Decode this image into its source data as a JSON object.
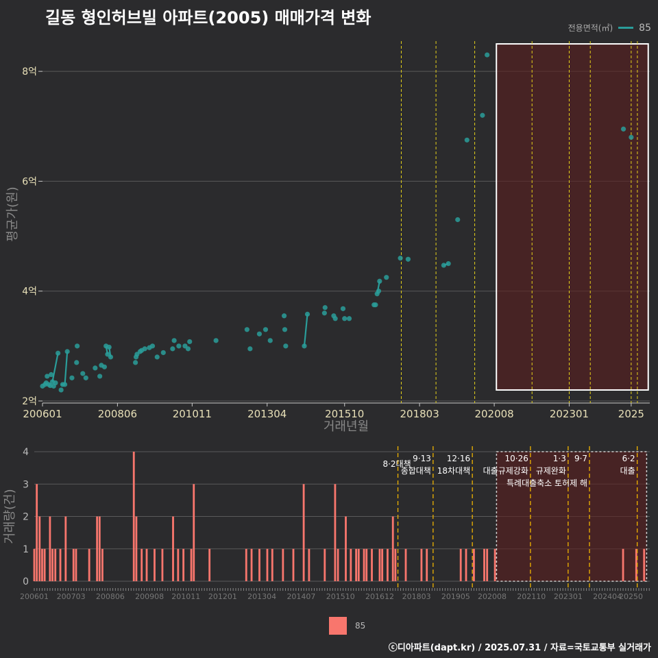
{
  "title": "길동 형인허브빌 아파트(2005) 매매가격 변화",
  "legend": {
    "title": "전용면적(㎡)",
    "series_label": "85",
    "bar_label": "85"
  },
  "footer": "ⓒ디아파트(dapt.kr) / 2025.07.31 / 자료=국토교통부 실거래가",
  "colors": {
    "line": "#2a9d9a",
    "bar": "#f8766d",
    "policy": "#e6d21a",
    "highlight": "#5a1e1e"
  },
  "chart_data": [
    {
      "type": "line",
      "title": "길동 형인허브빌 아파트(2005) 매매가격 변화",
      "xlabel": "거래년월",
      "ylabel": "평균가(원)",
      "xlim": [
        2006.0,
        2025.6
      ],
      "ylim": [
        2.0,
        8.8
      ],
      "xtick_values": [
        2006.0,
        2008.42,
        2010.83,
        2013.25,
        2015.75,
        2018.17,
        2020.58,
        2023.0,
        2025.0
      ],
      "xtick_labels": [
        "200601",
        "200806",
        "201011",
        "201304",
        "201510",
        "201803",
        "202008",
        "202301",
        "2025"
      ],
      "ytick_values": [
        2,
        4,
        6,
        8
      ],
      "ytick_labels": [
        "2억",
        "4억",
        "6억",
        "8억"
      ],
      "policy_lines": [
        2017.58,
        2018.7,
        2019.95,
        2021.8,
        2023.0,
        2023.68,
        2025.0,
        2025.2
      ],
      "highlight_range": {
        "x": [
          2020.65,
          2025.55
        ],
        "y": [
          2.2,
          8.5
        ]
      },
      "series": [
        {
          "name": "85",
          "points": [
            [
              2006.0,
              2.27
            ],
            [
              2006.08,
              2.3
            ],
            [
              2006.12,
              2.33
            ],
            [
              2006.15,
              2.45
            ],
            [
              2006.2,
              2.3
            ],
            [
              2006.25,
              2.28
            ],
            [
              2006.28,
              2.48
            ],
            [
              2006.32,
              2.35
            ],
            [
              2006.36,
              2.27
            ],
            [
              2006.42,
              2.33
            ],
            [
              2006.5,
              2.87
            ],
            [
              2006.6,
              2.2
            ],
            [
              2006.65,
              2.3
            ],
            [
              2006.72,
              2.3
            ],
            [
              2006.8,
              2.9
            ],
            [
              2006.95,
              2.42
            ],
            [
              2007.1,
              2.7
            ],
            [
              2007.12,
              3.0
            ],
            [
              2007.3,
              2.5
            ],
            [
              2007.4,
              2.42
            ],
            [
              2007.7,
              2.6
            ],
            [
              2007.85,
              2.45
            ],
            [
              2007.9,
              2.65
            ],
            [
              2008.0,
              2.62
            ],
            [
              2008.05,
              3.0
            ],
            [
              2008.1,
              2.85
            ],
            [
              2008.15,
              2.98
            ],
            [
              2008.2,
              2.8
            ],
            [
              2009.0,
              2.7
            ],
            [
              2009.02,
              2.8
            ],
            [
              2009.05,
              2.85
            ],
            [
              2009.15,
              2.9
            ],
            [
              2009.2,
              2.92
            ],
            [
              2009.3,
              2.95
            ],
            [
              2009.45,
              2.97
            ],
            [
              2009.55,
              3.0
            ],
            [
              2009.7,
              2.8
            ],
            [
              2009.9,
              2.88
            ],
            [
              2010.2,
              2.95
            ],
            [
              2010.25,
              3.1
            ],
            [
              2010.4,
              3.0
            ],
            [
              2010.6,
              3.0
            ],
            [
              2010.7,
              2.95
            ],
            [
              2010.75,
              3.08
            ],
            [
              2011.6,
              3.1
            ],
            [
              2012.6,
              3.3
            ],
            [
              2012.7,
              2.95
            ],
            [
              2013.0,
              3.22
            ],
            [
              2013.2,
              3.3
            ],
            [
              2013.35,
              3.1
            ],
            [
              2013.8,
              3.55
            ],
            [
              2013.82,
              3.3
            ],
            [
              2013.85,
              3.0
            ],
            [
              2014.45,
              3.0
            ],
            [
              2014.55,
              3.58
            ],
            [
              2015.1,
              3.6
            ],
            [
              2015.12,
              3.7
            ],
            [
              2015.4,
              3.55
            ],
            [
              2015.45,
              3.5
            ],
            [
              2015.7,
              3.68
            ],
            [
              2015.75,
              3.5
            ],
            [
              2015.9,
              3.5
            ],
            [
              2016.7,
              3.75
            ],
            [
              2016.75,
              3.75
            ],
            [
              2016.8,
              3.95
            ],
            [
              2016.85,
              4.0
            ],
            [
              2016.88,
              4.18
            ],
            [
              2017.1,
              4.25
            ],
            [
              2017.55,
              4.6
            ],
            [
              2017.8,
              4.58
            ],
            [
              2018.95,
              4.47
            ],
            [
              2019.1,
              4.5
            ],
            [
              2019.4,
              5.3
            ],
            [
              2019.7,
              6.75
            ],
            [
              2020.2,
              7.2
            ],
            [
              2020.35,
              8.3
            ],
            [
              2024.75,
              6.95
            ],
            [
              2025.0,
              6.8
            ]
          ],
          "line_segments": [
            [
              [
                2006.32,
                2.35
              ],
              [
                2006.5,
                2.87
              ]
            ],
            [
              [
                2006.6,
                2.3
              ],
              [
                2006.72,
                2.3
              ]
            ],
            [
              [
                2006.72,
                2.3
              ],
              [
                2006.8,
                2.9
              ]
            ],
            [
              [
                2008.05,
                3.0
              ],
              [
                2008.1,
                2.85
              ]
            ],
            [
              [
                2008.15,
                2.98
              ],
              [
                2008.2,
                2.8
              ]
            ],
            [
              [
                2014.45,
                3.0
              ],
              [
                2014.55,
                3.58
              ]
            ],
            [
              [
                2016.8,
                3.95
              ],
              [
                2016.88,
                4.18
              ]
            ],
            [
              [
                2018.95,
                4.47
              ],
              [
                2019.1,
                4.5
              ]
            ]
          ]
        }
      ]
    },
    {
      "type": "bar",
      "ylabel": "거래량(건)",
      "xlim": [
        2006.0,
        2025.6
      ],
      "ylim": [
        0,
        4
      ],
      "xtick_values": [
        2006.0,
        2007.17,
        2008.42,
        2009.67,
        2010.83,
        2012.0,
        2013.25,
        2014.5,
        2015.75,
        2017.0,
        2018.17,
        2019.42,
        2020.58,
        2021.83,
        2023.0,
        2024.25,
        2025.0
      ],
      "xtick_labels": [
        "200601",
        "200703",
        "200806",
        "200908",
        "201011",
        "201201",
        "201304",
        "201407",
        "201510",
        "201612",
        "201803",
        "201905",
        "202008",
        "202110",
        "202301",
        "202404",
        "20250"
      ],
      "ytick_values": [
        0,
        1,
        2,
        3,
        4
      ],
      "ytick_labels": [
        "0",
        "1",
        "2",
        "3",
        "4"
      ],
      "policies": [
        {
          "x": 2017.58,
          "date": "8·2",
          "name": "대책"
        },
        {
          "x": 2018.7,
          "date": "9·13",
          "name": "종합대책"
        },
        {
          "x": 2019.95,
          "date": "12·16",
          "name": "18차대책"
        },
        {
          "x": 2021.8,
          "date": "10·26",
          "name": "대출규제강화"
        },
        {
          "x": 2023.0,
          "date": "1·3",
          "name": "규제완화"
        },
        {
          "x": 2023.68,
          "date": "9·7",
          "name": "특례대출축소 토허제 해"
        },
        {
          "x": 2025.2,
          "date": "6·2",
          "name": "대출"
        }
      ],
      "bars": [
        [
          2006.0,
          1
        ],
        [
          2006.08,
          3
        ],
        [
          2006.17,
          2
        ],
        [
          2006.25,
          1
        ],
        [
          2006.33,
          1
        ],
        [
          2006.5,
          2
        ],
        [
          2006.58,
          1
        ],
        [
          2006.67,
          1
        ],
        [
          2006.83,
          1
        ],
        [
          2007.0,
          2
        ],
        [
          2007.25,
          1
        ],
        [
          2007.33,
          1
        ],
        [
          2007.75,
          1
        ],
        [
          2008.0,
          2
        ],
        [
          2008.08,
          2
        ],
        [
          2008.17,
          1
        ],
        [
          2009.17,
          4
        ],
        [
          2009.25,
          2
        ],
        [
          2009.42,
          1
        ],
        [
          2009.58,
          1
        ],
        [
          2009.83,
          1
        ],
        [
          2010.08,
          1
        ],
        [
          2010.42,
          2
        ],
        [
          2010.58,
          1
        ],
        [
          2010.75,
          1
        ],
        [
          2011.0,
          1
        ],
        [
          2011.08,
          3
        ],
        [
          2011.58,
          1
        ],
        [
          2012.75,
          1
        ],
        [
          2012.92,
          1
        ],
        [
          2013.17,
          1
        ],
        [
          2013.42,
          1
        ],
        [
          2013.58,
          1
        ],
        [
          2013.92,
          1
        ],
        [
          2014.25,
          1
        ],
        [
          2014.58,
          3
        ],
        [
          2014.75,
          1
        ],
        [
          2015.25,
          1
        ],
        [
          2015.58,
          3
        ],
        [
          2015.67,
          1
        ],
        [
          2015.92,
          2
        ],
        [
          2016.08,
          1
        ],
        [
          2016.25,
          1
        ],
        [
          2016.33,
          1
        ],
        [
          2016.5,
          1
        ],
        [
          2016.58,
          1
        ],
        [
          2016.75,
          1
        ],
        [
          2017.0,
          1
        ],
        [
          2017.08,
          1
        ],
        [
          2017.25,
          1
        ],
        [
          2017.42,
          2
        ],
        [
          2017.5,
          1
        ],
        [
          2017.83,
          1
        ],
        [
          2018.33,
          1
        ],
        [
          2018.5,
          1
        ],
        [
          2019.58,
          1
        ],
        [
          2019.75,
          1
        ],
        [
          2020.0,
          1
        ],
        [
          2020.33,
          1
        ],
        [
          2020.42,
          1
        ],
        [
          2020.67,
          1
        ],
        [
          2024.75,
          1
        ],
        [
          2025.17,
          1
        ],
        [
          2025.42,
          1
        ]
      ]
    }
  ]
}
